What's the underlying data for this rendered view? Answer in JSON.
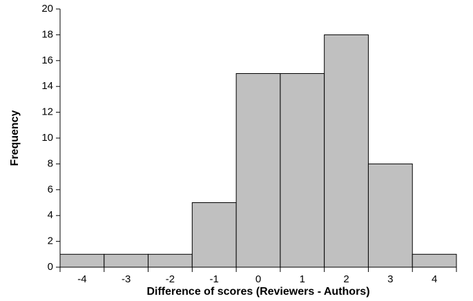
{
  "chart_data": {
    "type": "bar",
    "categories": [
      "-4",
      "-3",
      "-2",
      "-1",
      "0",
      "1",
      "2",
      "3",
      "4"
    ],
    "values": [
      1,
      1,
      1,
      5,
      15,
      15,
      18,
      8,
      1
    ],
    "color": "#c0c0c0",
    "xlabel": "Difference of scores (Reviewers - Authors)",
    "ylabel": "Frequency",
    "ylim": [
      0,
      20
    ],
    "yticks": [
      0,
      2,
      4,
      6,
      8,
      10,
      12,
      14,
      16,
      18,
      20
    ],
    "grid": false
  }
}
